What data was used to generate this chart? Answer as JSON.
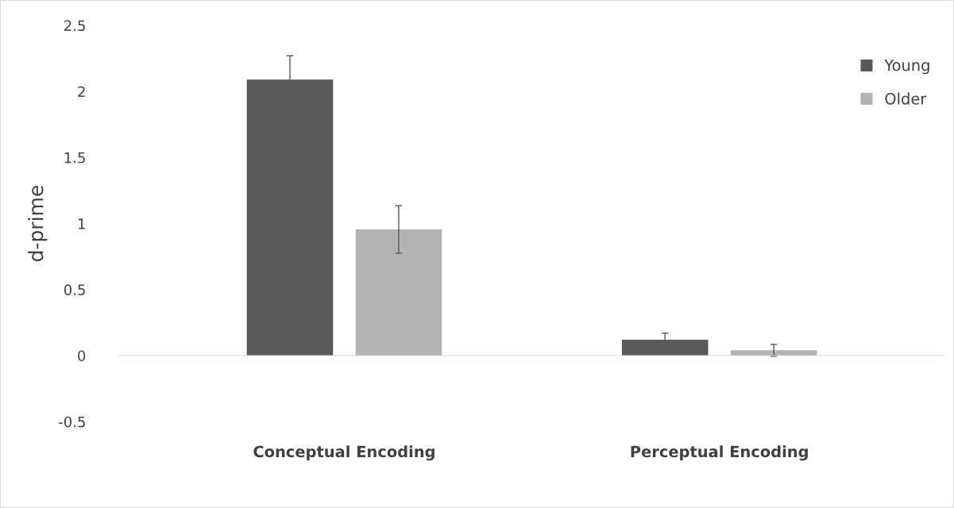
{
  "chart_data": {
    "type": "bar",
    "ylabel": "d-prime",
    "categories": [
      "Conceptual Encoding",
      "Perceptual Encoding"
    ],
    "series": [
      {
        "name": "Young",
        "color": "#595959",
        "values": [
          2.09,
          0.12
        ],
        "errors": [
          0.18,
          0.05
        ]
      },
      {
        "name": "Older",
        "color": "#b3b3b3",
        "values": [
          0.955,
          0.04
        ],
        "errors": [
          0.18,
          0.045
        ]
      }
    ],
    "ylim": [
      -0.5,
      2.5
    ],
    "yticks": [
      -0.5,
      0,
      0.5,
      1,
      1.5,
      2,
      2.5
    ],
    "legend": "top right"
  }
}
